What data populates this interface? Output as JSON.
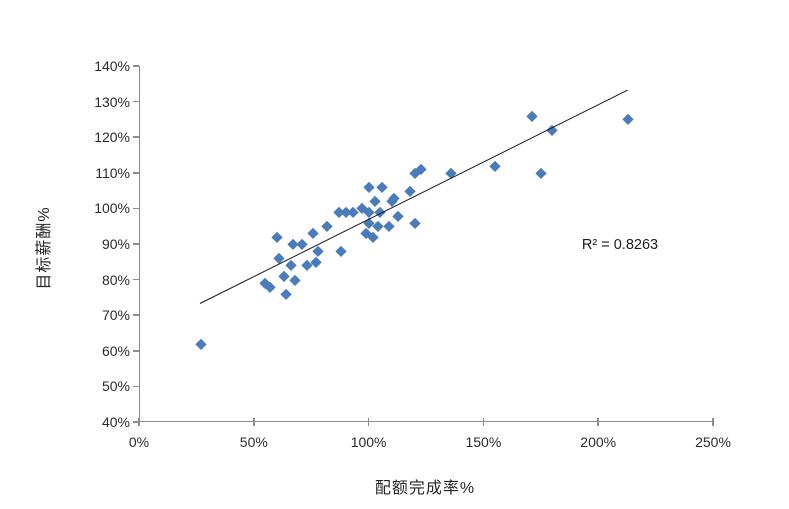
{
  "chart_data": {
    "type": "scatter",
    "title": "",
    "xlabel": "配额完成率%",
    "ylabel": "目标薪酬%",
    "xlim": [
      0,
      250
    ],
    "ylim": [
      40,
      140
    ],
    "x_tick_values": [
      0,
      50,
      100,
      150,
      200,
      250
    ],
    "x_tick_labels": [
      "0%",
      "50%",
      "100%",
      "150%",
      "200%",
      "250%"
    ],
    "y_tick_values": [
      140,
      130,
      120,
      110,
      100,
      90,
      80,
      70,
      60,
      50,
      40
    ],
    "y_tick_labels": [
      "140%",
      "130%",
      "120%",
      "110%",
      "100%",
      "90%",
      "80%",
      "70%",
      "60%",
      "50%",
      "40%"
    ],
    "grid": false,
    "legend": "none",
    "marker": "diamond",
    "marker_color": "#4A7CBB",
    "axis_color": "#8c8c8c",
    "series": [
      {
        "name": "目标薪酬%",
        "points": [
          [
            27,
            62
          ],
          [
            55,
            79
          ],
          [
            57,
            78
          ],
          [
            60,
            92
          ],
          [
            61,
            86
          ],
          [
            63,
            81
          ],
          [
            64,
            76
          ],
          [
            66,
            84
          ],
          [
            67,
            90
          ],
          [
            68,
            80
          ],
          [
            71,
            90
          ],
          [
            73,
            84
          ],
          [
            76,
            93
          ],
          [
            77,
            85
          ],
          [
            78,
            88
          ],
          [
            82,
            95
          ],
          [
            87,
            99
          ],
          [
            88,
            88
          ],
          [
            90,
            99
          ],
          [
            93,
            99
          ],
          [
            97,
            100
          ],
          [
            99,
            93
          ],
          [
            100,
            96
          ],
          [
            100,
            99
          ],
          [
            100,
            106
          ],
          [
            102,
            92
          ],
          [
            103,
            102
          ],
          [
            104,
            95
          ],
          [
            105,
            99
          ],
          [
            106,
            106
          ],
          [
            109,
            95
          ],
          [
            110,
            102
          ],
          [
            111,
            103
          ],
          [
            113,
            98
          ],
          [
            118,
            105
          ],
          [
            120,
            96
          ],
          [
            120,
            110
          ],
          [
            123,
            111
          ],
          [
            136,
            110
          ],
          [
            155,
            112
          ],
          [
            171,
            126
          ],
          [
            175,
            110
          ],
          [
            180,
            122
          ],
          [
            213,
            125
          ]
        ]
      }
    ],
    "trendline": {
      "type": "linear",
      "color": "#1a1a1a",
      "x1": 26.6,
      "y1": 73.5,
      "x2": 213.0,
      "y2": 133.5,
      "r_squared": 0.8263
    },
    "annotation": {
      "text": "R² = 0.8263",
      "x": 209,
      "y": 90
    }
  }
}
